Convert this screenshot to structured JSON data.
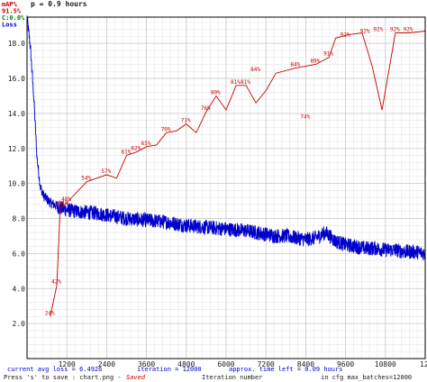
{
  "header": {
    "title_fragment": "p = 0.9 hours"
  },
  "chart_data": {
    "type": "line",
    "xlabel": "Iteration number",
    "x_ticks": [
      1200,
      2400,
      3600,
      4800,
      6000,
      7200,
      8400,
      9600,
      10800
    ],
    "x_last_tick": "12",
    "y_ticks": [
      "2.0",
      "4.0",
      "6.0",
      "8.0",
      "10.0",
      "12.0",
      "14.0",
      "16.0",
      "18.0"
    ],
    "xlim": [
      0,
      12000
    ],
    "ylim": [
      0,
      19.5
    ],
    "grid": true,
    "legend": {
      "placement": "top-left",
      "entries": [
        {
          "text": "mAP%",
          "color": "#cc0000"
        },
        {
          "text": "91.5%",
          "color": "#cc0000"
        },
        {
          "text": "C:0.0%",
          "color": "#008000"
        },
        {
          "text": "Loss",
          "color": "#0000cc"
        }
      ]
    },
    "colors": {
      "loss": "#0000cc",
      "map": "#cc0000",
      "grid": "#c8c8c8",
      "minor_grid": "#e6e6e6"
    },
    "series": [
      {
        "name": "Loss",
        "kind": "loss",
        "x": [
          0,
          100,
          200,
          300,
          400,
          500,
          600,
          700,
          800,
          1000,
          1200,
          1500,
          1800,
          2100,
          2400,
          2700,
          3000,
          3300,
          3600,
          3900,
          4200,
          4500,
          4800,
          5100,
          5400,
          5700,
          6000,
          6300,
          6600,
          6900,
          7200,
          7500,
          7800,
          8100,
          8400,
          8700,
          9000,
          9300,
          9600,
          9900,
          10200,
          10500,
          10800,
          11100,
          11400,
          11700,
          12000
        ],
        "y": [
          19.5,
          17.8,
          15.0,
          11.5,
          9.8,
          9.3,
          9.1,
          8.9,
          8.8,
          8.6,
          8.5,
          8.4,
          8.35,
          8.3,
          8.2,
          8.1,
          8.0,
          7.95,
          7.9,
          7.85,
          7.8,
          7.7,
          7.6,
          7.55,
          7.5,
          7.45,
          7.4,
          7.35,
          7.3,
          7.2,
          7.1,
          7.0,
          7.0,
          6.9,
          6.8,
          6.9,
          7.2,
          6.7,
          6.5,
          6.4,
          6.3,
          6.3,
          6.2,
          6.2,
          6.1,
          6.1,
          6.0
        ]
      },
      {
        "name": "mAP%",
        "kind": "map",
        "x": [
          700,
          900,
          1000,
          1100,
          1200,
          1800,
          2400,
          2700,
          3000,
          3300,
          3600,
          3900,
          4200,
          4500,
          4800,
          5100,
          5400,
          5700,
          6000,
          6300,
          6600,
          6900,
          7200,
          7500,
          8100,
          8700,
          8900,
          9100,
          9300,
          9700,
          10100,
          10400,
          10700,
          11100,
          11500,
          12000
        ],
        "y": [
          2.4,
          4.2,
          8.6,
          8.7,
          8.9,
          10.1,
          10.5,
          10.3,
          11.6,
          11.8,
          12.1,
          12.2,
          12.9,
          13.0,
          13.4,
          12.9,
          14.1,
          15.0,
          14.2,
          15.6,
          15.6,
          14.6,
          15.3,
          16.3,
          16.6,
          16.8,
          17.0,
          17.2,
          18.3,
          18.5,
          18.6,
          16.7,
          14.2,
          18.6,
          18.6,
          18.7
        ],
        "labels": [
          {
            "x": 700,
            "y": 2.4,
            "text": "24%"
          },
          {
            "x": 900,
            "y": 4.2,
            "text": "42%"
          },
          {
            "x": 1000,
            "y": 8.6,
            "text": "43%"
          },
          {
            "x": 1100,
            "y": 8.7,
            "text": "44%"
          },
          {
            "x": 1200,
            "y": 8.9,
            "text": "48%"
          },
          {
            "x": 1800,
            "y": 10.1,
            "text": "54%"
          },
          {
            "x": 2400,
            "y": 10.5,
            "text": "57%"
          },
          {
            "x": 3000,
            "y": 11.6,
            "text": "61%"
          },
          {
            "x": 3300,
            "y": 11.8,
            "text": "62%"
          },
          {
            "x": 3600,
            "y": 12.1,
            "text": "65%"
          },
          {
            "x": 4200,
            "y": 12.9,
            "text": "70%"
          },
          {
            "x": 4800,
            "y": 13.4,
            "text": "71%"
          },
          {
            "x": 5400,
            "y": 14.1,
            "text": "76%"
          },
          {
            "x": 5700,
            "y": 15.0,
            "text": "80%"
          },
          {
            "x": 6300,
            "y": 15.6,
            "text": "81%"
          },
          {
            "x": 6600,
            "y": 15.6,
            "text": "81%"
          },
          {
            "x": 6900,
            "y": 16.3,
            "text": "84%"
          },
          {
            "x": 8100,
            "y": 16.6,
            "text": "84%"
          },
          {
            "x": 8400,
            "y": 13.6,
            "text": "74%"
          },
          {
            "x": 8700,
            "y": 16.8,
            "text": "89%"
          },
          {
            "x": 9100,
            "y": 17.2,
            "text": "91%"
          },
          {
            "x": 9600,
            "y": 18.3,
            "text": "92%"
          },
          {
            "x": 10200,
            "y": 18.5,
            "text": "92%"
          },
          {
            "x": 10600,
            "y": 18.6,
            "text": "92%"
          },
          {
            "x": 11100,
            "y": 18.6,
            "text": "92%"
          },
          {
            "x": 11500,
            "y": 18.6,
            "text": "92%"
          }
        ]
      }
    ]
  },
  "footer": {
    "line1_left": "current avg loss = 6.4926",
    "line1_mid": "iteration = 12000",
    "line1_right": "approx. time left = 0.09 hours",
    "line2_left": "Press 's' to save : chart.png -",
    "line2_saved": "Saved",
    "line2_mid": "Iteration number",
    "line2_right": "in cfg max_batches=12000"
  }
}
